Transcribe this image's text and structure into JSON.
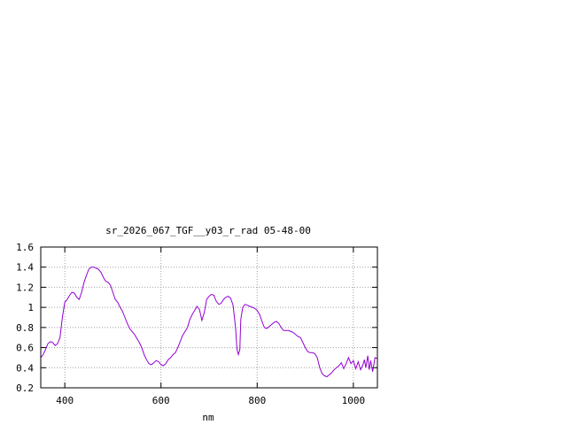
{
  "chart_data": {
    "type": "line",
    "title": "sr_2026_067_TGF__y03_r_rad 05-48-00",
    "xlabel": "nm",
    "ylabel": "",
    "xlim": [
      350,
      1050
    ],
    "ylim": [
      0.2,
      1.6
    ],
    "xticks": [
      400,
      600,
      800,
      1000
    ],
    "xtick_labels": [
      "400",
      "600",
      "800",
      "1000"
    ],
    "yticks": [
      0.2,
      0.4,
      0.6,
      0.8,
      1.0,
      1.2,
      1.4,
      1.6
    ],
    "ytick_labels": [
      "0.2",
      "0.4",
      "0.6",
      "0.8",
      "1",
      "1.2",
      "1.4",
      "1.6"
    ],
    "grid": true,
    "grid_style": "dotted",
    "line_color": "#9400d3",
    "series": [
      {
        "name": "",
        "x": [
          350,
          355,
          360,
          365,
          370,
          375,
          380,
          385,
          390,
          395,
          400,
          405,
          410,
          415,
          420,
          425,
          430,
          435,
          440,
          445,
          450,
          455,
          460,
          465,
          470,
          475,
          480,
          485,
          490,
          495,
          500,
          505,
          510,
          515,
          520,
          525,
          530,
          535,
          540,
          545,
          550,
          555,
          560,
          565,
          570,
          575,
          580,
          585,
          590,
          595,
          600,
          605,
          610,
          615,
          620,
          625,
          630,
          635,
          640,
          645,
          650,
          655,
          660,
          665,
          670,
          675,
          680,
          685,
          690,
          695,
          700,
          705,
          710,
          715,
          720,
          725,
          730,
          735,
          740,
          745,
          750,
          755,
          758,
          761,
          764,
          766,
          770,
          775,
          780,
          785,
          790,
          795,
          800,
          805,
          810,
          815,
          820,
          825,
          830,
          835,
          840,
          845,
          850,
          855,
          860,
          865,
          870,
          875,
          880,
          885,
          890,
          895,
          900,
          905,
          910,
          915,
          920,
          925,
          930,
          935,
          940,
          945,
          950,
          955,
          960,
          965,
          970,
          975,
          980,
          985,
          990,
          995,
          1000,
          1005,
          1010,
          1015,
          1020,
          1023,
          1026,
          1030,
          1033,
          1036,
          1040,
          1045,
          1050
        ],
        "y": [
          0.5,
          0.53,
          0.58,
          0.64,
          0.66,
          0.65,
          0.62,
          0.64,
          0.7,
          0.9,
          1.05,
          1.08,
          1.12,
          1.15,
          1.14,
          1.1,
          1.08,
          1.15,
          1.25,
          1.32,
          1.38,
          1.4,
          1.4,
          1.39,
          1.38,
          1.35,
          1.3,
          1.26,
          1.25,
          1.22,
          1.15,
          1.08,
          1.05,
          1.0,
          0.96,
          0.9,
          0.84,
          0.79,
          0.76,
          0.73,
          0.69,
          0.65,
          0.6,
          0.53,
          0.48,
          0.44,
          0.43,
          0.45,
          0.47,
          0.46,
          0.43,
          0.42,
          0.44,
          0.48,
          0.5,
          0.53,
          0.55,
          0.6,
          0.66,
          0.72,
          0.76,
          0.8,
          0.88,
          0.93,
          0.97,
          1.01,
          0.98,
          0.87,
          0.95,
          1.08,
          1.11,
          1.13,
          1.12,
          1.06,
          1.03,
          1.04,
          1.08,
          1.1,
          1.11,
          1.09,
          1.02,
          0.8,
          0.58,
          0.53,
          0.58,
          0.88,
          1.0,
          1.03,
          1.02,
          1.01,
          1.0,
          0.99,
          0.97,
          0.93,
          0.86,
          0.8,
          0.79,
          0.81,
          0.83,
          0.85,
          0.86,
          0.84,
          0.8,
          0.77,
          0.77,
          0.77,
          0.76,
          0.75,
          0.73,
          0.71,
          0.7,
          0.65,
          0.6,
          0.56,
          0.55,
          0.55,
          0.54,
          0.5,
          0.4,
          0.34,
          0.32,
          0.31,
          0.33,
          0.35,
          0.38,
          0.4,
          0.42,
          0.45,
          0.39,
          0.44,
          0.5,
          0.44,
          0.47,
          0.39,
          0.46,
          0.38,
          0.43,
          0.48,
          0.4,
          0.52,
          0.38,
          0.47,
          0.36,
          0.5,
          0.49
        ]
      }
    ]
  }
}
